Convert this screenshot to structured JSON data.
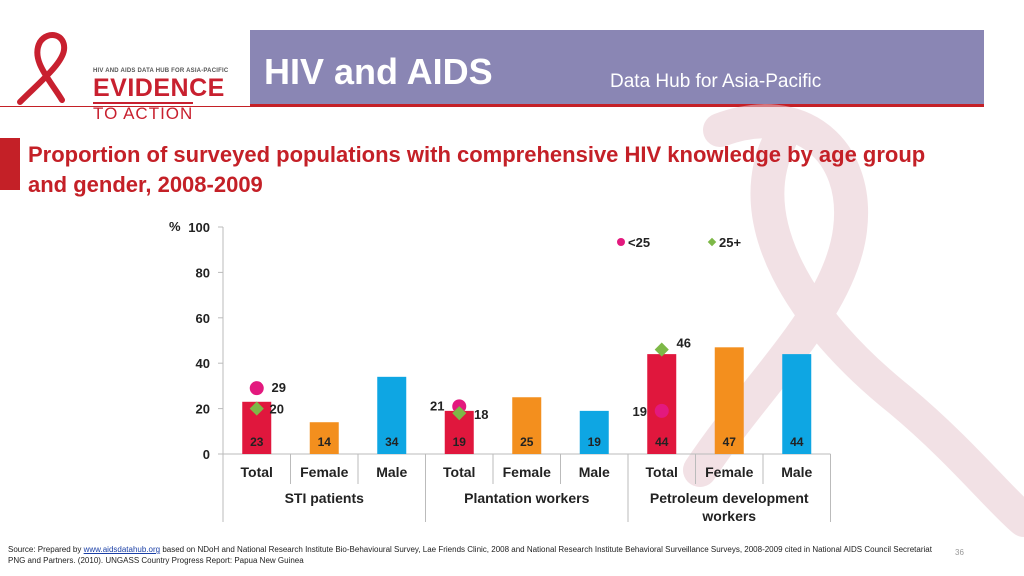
{
  "header": {
    "logo_small": "HIV AND AIDS DATA HUB FOR ASIA-PACIFIC",
    "logo_line1": "EVIDENCE",
    "logo_line2": "TO ACTION",
    "title": "HIV and AIDS",
    "subtitle": "Data Hub for Asia-Pacific"
  },
  "colors": {
    "banner": "#8a86b4",
    "accent_red": "#c42027",
    "total_bar": "#e0173d",
    "female_bar": "#f38f1e",
    "male_bar": "#0ea6e3",
    "under25_marker": "#e3197e",
    "over25_marker": "#7db847"
  },
  "chart_data": {
    "type": "bar",
    "title": "Proportion of surveyed populations with comprehensive HIV knowledge by age group and gender, 2008-2009",
    "ylabel": "%",
    "ylim": [
      0,
      100
    ],
    "yticks": [
      0,
      20,
      40,
      60,
      80,
      100
    ],
    "groups": [
      "STI patients",
      "Plantation workers",
      "Petroleum development workers"
    ],
    "categories": [
      "Total",
      "Female",
      "Male",
      "Total",
      "Female",
      "Male",
      "Total",
      "Female",
      "Male"
    ],
    "values": [
      23,
      14,
      34,
      19,
      25,
      19,
      44,
      47,
      44
    ],
    "markers": [
      {
        "name": "<25",
        "values": [
          29,
          null,
          null,
          21,
          null,
          null,
          19,
          null,
          null
        ]
      },
      {
        "name": "25+",
        "values": [
          20,
          null,
          null,
          18,
          null,
          null,
          46,
          null,
          null
        ]
      }
    ],
    "legend": [
      "<25",
      "25+"
    ],
    "legend_position": "top-right",
    "grid": false
  },
  "footer": {
    "source_prefix": "Source: Prepared by ",
    "source_link": "www.aidsdatahub.org",
    "source_rest": "  based on  NDoH and National Research Institute Bio-Behavioural Survey, Lae Friends Clinic, 2008 and National Research Institute Behavioral Surveillance Surveys, 2008-2009 cited in National AIDS Council Secretariat PNG and Partners. (2010). UNGASS Country Progress Report: Papua New Guinea",
    "page_number": "36"
  }
}
